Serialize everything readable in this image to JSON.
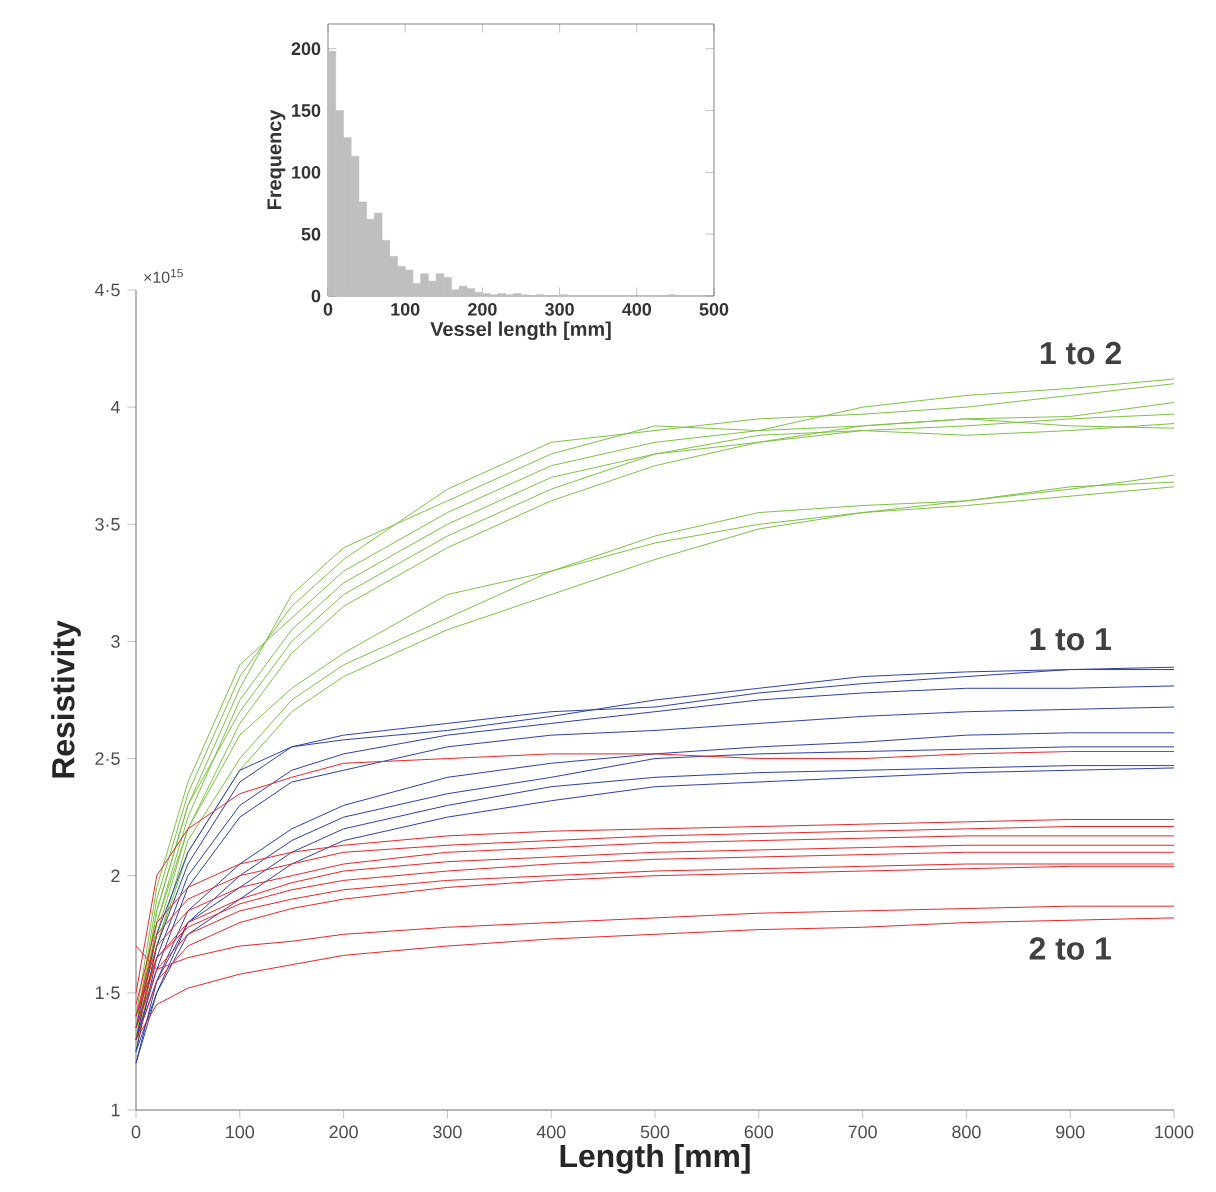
{
  "chart_data": [
    {
      "type": "line",
      "xlabel": "Length [mm]",
      "ylabel": "Resistivity",
      "xlim": [
        0,
        1000
      ],
      "ylim": [
        1,
        4.5
      ],
      "xticks": [
        0,
        100,
        200,
        300,
        400,
        500,
        600,
        700,
        800,
        900,
        1000
      ],
      "yticks": [
        1,
        {
          "value": 1.5,
          "label": "1·5"
        },
        2,
        {
          "value": 2.5,
          "label": "2·5"
        },
        3,
        {
          "value": 3.5,
          "label": "3·5"
        },
        4,
        {
          "value": 4.5,
          "label": "4·5"
        }
      ],
      "x": [
        0,
        20,
        50,
        100,
        150,
        200,
        300,
        400,
        500,
        600,
        700,
        800,
        900,
        1000
      ],
      "grid": false,
      "marker": "none",
      "line_style": "solid",
      "series": [
        {
          "color": "#7dc242",
          "values": [
            1.35,
            1.9,
            2.35,
            2.85,
            3.15,
            3.35,
            3.65,
            3.85,
            3.9,
            3.95,
            3.97,
            4.0,
            4.05,
            4.1
          ]
        },
        {
          "color": "#7dc242",
          "values": [
            1.3,
            1.85,
            2.3,
            2.8,
            3.2,
            3.4,
            3.6,
            3.8,
            3.92,
            3.9,
            4.0,
            4.05,
            4.08,
            4.12
          ]
        },
        {
          "color": "#7dc242",
          "values": [
            1.4,
            1.95,
            2.4,
            2.9,
            3.1,
            3.3,
            3.55,
            3.75,
            3.85,
            3.9,
            3.92,
            3.95,
            3.96,
            4.02
          ]
        },
        {
          "color": "#7dc242",
          "values": [
            1.3,
            1.8,
            2.25,
            2.75,
            3.05,
            3.25,
            3.5,
            3.7,
            3.8,
            3.85,
            3.9,
            3.92,
            3.95,
            3.97
          ]
        },
        {
          "color": "#7dc242",
          "values": [
            1.35,
            1.85,
            2.3,
            2.7,
            3.0,
            3.2,
            3.45,
            3.65,
            3.8,
            3.88,
            3.9,
            3.88,
            3.9,
            3.93
          ]
        },
        {
          "color": "#7dc242",
          "values": [
            1.25,
            1.8,
            2.2,
            2.65,
            2.95,
            3.15,
            3.4,
            3.6,
            3.75,
            3.85,
            3.92,
            3.95,
            3.92,
            3.91
          ]
        },
        {
          "color": "#7dc242",
          "values": [
            1.3,
            1.75,
            2.2,
            2.6,
            2.8,
            2.95,
            3.2,
            3.3,
            3.45,
            3.55,
            3.58,
            3.6,
            3.65,
            3.71
          ]
        },
        {
          "color": "#7dc242",
          "values": [
            1.3,
            1.7,
            2.15,
            2.5,
            2.75,
            2.9,
            3.1,
            3.3,
            3.42,
            3.5,
            3.55,
            3.6,
            3.66,
            3.68
          ]
        },
        {
          "color": "#7dc242",
          "values": [
            1.25,
            1.7,
            2.1,
            2.45,
            2.7,
            2.85,
            3.05,
            3.2,
            3.35,
            3.48,
            3.55,
            3.58,
            3.62,
            3.66
          ]
        },
        {
          "color": "#2e3fa8",
          "values": [
            1.3,
            1.7,
            2.05,
            2.4,
            2.55,
            2.6,
            2.65,
            2.7,
            2.72,
            2.78,
            2.82,
            2.85,
            2.88,
            2.89
          ]
        },
        {
          "color": "#2e3fa8",
          "values": [
            1.35,
            1.75,
            2.1,
            2.45,
            2.55,
            2.58,
            2.62,
            2.68,
            2.75,
            2.8,
            2.85,
            2.87,
            2.88,
            2.88
          ]
        },
        {
          "color": "#2e3fa8",
          "values": [
            1.25,
            1.65,
            2.0,
            2.3,
            2.45,
            2.52,
            2.6,
            2.65,
            2.7,
            2.75,
            2.78,
            2.8,
            2.8,
            2.81
          ]
        },
        {
          "color": "#2e3fa8",
          "values": [
            1.3,
            1.6,
            1.95,
            2.25,
            2.4,
            2.45,
            2.55,
            2.6,
            2.62,
            2.65,
            2.68,
            2.7,
            2.71,
            2.72
          ]
        },
        {
          "color": "#2e3fa8",
          "values": [
            1.2,
            1.55,
            1.85,
            2.05,
            2.2,
            2.3,
            2.42,
            2.48,
            2.52,
            2.55,
            2.57,
            2.6,
            2.61,
            2.61
          ]
        },
        {
          "color": "#2e3fa8",
          "values": [
            1.25,
            1.5,
            1.8,
            2.0,
            2.15,
            2.25,
            2.35,
            2.42,
            2.5,
            2.52,
            2.53,
            2.54,
            2.55,
            2.55
          ]
        },
        {
          "color": "#2e3fa8",
          "values": [
            1.3,
            1.55,
            1.8,
            1.95,
            2.1,
            2.2,
            2.3,
            2.38,
            2.42,
            2.44,
            2.45,
            2.46,
            2.47,
            2.47
          ]
        },
        {
          "color": "#2e3fa8",
          "values": [
            1.2,
            1.5,
            1.75,
            1.9,
            2.05,
            2.15,
            2.25,
            2.32,
            2.38,
            2.4,
            2.42,
            2.44,
            2.45,
            2.46
          ]
        },
        {
          "color": "#e8262b",
          "values": [
            1.5,
            2.0,
            2.2,
            2.35,
            2.42,
            2.48,
            2.5,
            2.52,
            2.52,
            2.5,
            2.5,
            2.52,
            2.53,
            2.53
          ]
        },
        {
          "color": "#e8262b",
          "values": [
            1.45,
            1.8,
            1.95,
            2.05,
            2.1,
            2.13,
            2.17,
            2.19,
            2.2,
            2.21,
            2.22,
            2.23,
            2.24,
            2.24
          ]
        },
        {
          "color": "#e8262b",
          "values": [
            1.4,
            1.75,
            1.9,
            2.0,
            2.05,
            2.1,
            2.13,
            2.15,
            2.17,
            2.18,
            2.19,
            2.2,
            2.21,
            2.21
          ]
        },
        {
          "color": "#e8262b",
          "values": [
            1.4,
            1.7,
            1.85,
            1.95,
            2.0,
            2.05,
            2.1,
            2.12,
            2.14,
            2.15,
            2.16,
            2.17,
            2.17,
            2.17
          ]
        },
        {
          "color": "#e8262b",
          "values": [
            1.35,
            1.65,
            1.8,
            1.9,
            1.97,
            2.02,
            2.06,
            2.08,
            2.1,
            2.11,
            2.12,
            2.13,
            2.13,
            2.13
          ]
        },
        {
          "color": "#e8262b",
          "values": [
            1.4,
            1.65,
            1.78,
            1.88,
            1.94,
            1.98,
            2.02,
            2.05,
            2.07,
            2.08,
            2.09,
            2.1,
            2.1,
            2.1
          ]
        },
        {
          "color": "#e8262b",
          "values": [
            1.35,
            1.6,
            1.75,
            1.85,
            1.9,
            1.94,
            1.98,
            2.0,
            2.02,
            2.03,
            2.04,
            2.05,
            2.05,
            2.05
          ]
        },
        {
          "color": "#e8262b",
          "values": [
            1.3,
            1.55,
            1.7,
            1.8,
            1.86,
            1.9,
            1.95,
            1.98,
            2.0,
            2.01,
            2.02,
            2.03,
            2.04,
            2.04
          ]
        },
        {
          "color": "#e8262b",
          "values": [
            1.7,
            1.6,
            1.65,
            1.7,
            1.72,
            1.75,
            1.78,
            1.8,
            1.82,
            1.84,
            1.85,
            1.86,
            1.87,
            1.87
          ]
        },
        {
          "color": "#e8262b",
          "values": [
            1.3,
            1.45,
            1.52,
            1.58,
            1.62,
            1.66,
            1.7,
            1.73,
            1.75,
            1.77,
            1.78,
            1.8,
            1.81,
            1.82
          ]
        }
      ],
      "annotations": [
        "×10$^{15}$",
        "1 to 2",
        "1 to 1",
        "2 to 1"
      ]
    },
    {
      "type": "histogram",
      "xlabel": "Vessel length [mm]",
      "ylabel": "Frequency",
      "xlim": [
        0,
        500
      ],
      "ylim": [
        0,
        220
      ],
      "xticks": [
        0,
        100,
        200,
        300,
        400,
        500
      ],
      "yticks": [
        0,
        50,
        100,
        150,
        200
      ],
      "color": "#bfbfbf",
      "grid": false,
      "bins": [
        0,
        10,
        20,
        30,
        40,
        50,
        60,
        70,
        80,
        90,
        100,
        110,
        120,
        130,
        140,
        150,
        160,
        170,
        180,
        190,
        200,
        210,
        220,
        230,
        240,
        250,
        260,
        270,
        280,
        290,
        300,
        310,
        320,
        330,
        340,
        350,
        360,
        370,
        380,
        390,
        400,
        410,
        420,
        430,
        440,
        450,
        460
      ],
      "values": [
        198,
        150,
        128,
        113,
        76,
        62,
        67,
        45,
        32,
        24,
        21,
        10,
        18,
        12,
        18,
        15,
        5,
        8,
        6,
        3,
        2,
        1,
        2,
        1,
        2,
        1,
        0,
        1,
        0,
        0,
        1,
        0,
        0,
        0,
        0,
        0,
        0,
        0,
        0,
        0,
        0,
        0,
        0,
        0,
        1,
        0
      ]
    }
  ]
}
